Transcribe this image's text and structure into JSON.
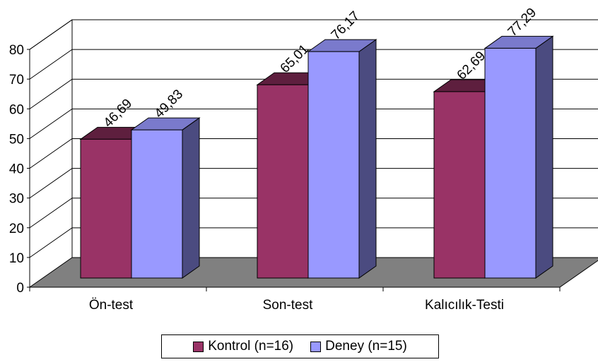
{
  "chart_data": {
    "type": "bar",
    "categories": [
      "Ön-test",
      "Son-test",
      "Kalıcılık-Testi"
    ],
    "series": [
      {
        "name": "Kontrol (n=16)",
        "values": [
          46.69,
          65.01,
          62.69
        ],
        "labels": [
          "46,69",
          "65,01",
          "62,69"
        ],
        "color": "#993366"
      },
      {
        "name": "Deney (n=15)",
        "values": [
          49.83,
          76.17,
          77.29
        ],
        "labels": [
          "49,83",
          "76,17",
          "77,29"
        ],
        "color": "#9999FF"
      }
    ],
    "ylim": [
      0,
      80
    ],
    "yticks": [
      "0",
      "10",
      "20",
      "30",
      "40",
      "50",
      "60",
      "70",
      "80"
    ],
    "grid": true,
    "legend": "bottom",
    "title": "",
    "xlabel": "",
    "ylabel": "",
    "colors": {
      "floor": "#808080",
      "kontrol_dark": "#5E1F3E",
      "deney_dark": "#4B4B80",
      "deney_top": "#7A7ACC"
    }
  }
}
